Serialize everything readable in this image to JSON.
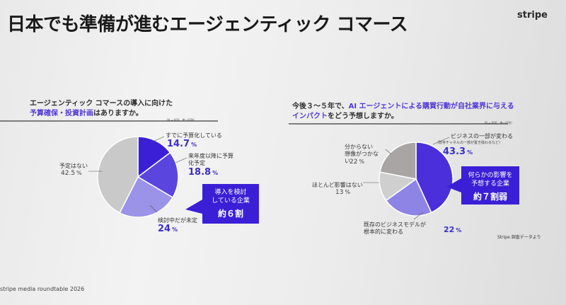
{
  "slide": {
    "title": "日本でも準備が進むエージェンティック コマース",
    "brand": "stripe",
    "footer": "stripe media roundtable 2026",
    "source": "Stripe 調査データより"
  },
  "left": {
    "question_line1": "エージェンティック コマースの導入に向けた",
    "question_line2_highlight": "予算確保・投資計画",
    "question_line2_rest": "はありますか。",
    "note": "（N = 600、単一回答）",
    "callout_line1": "導入を検討",
    "callout_line2": "している企業",
    "callout_line3": "約６割"
  },
  "right": {
    "question_line1": "今後３～５年で、",
    "question_line1_highlight": "AI エージェントによる購買行動が自社業界に与える",
    "question_line2_highlight": "インパクト",
    "question_line2_rest": "をどう予想しますか。",
    "note": "（N = 600、単一回答）",
    "callout_line1": "何らかの影響を",
    "callout_line2": "予想する企業",
    "callout_line3": "約７割弱"
  },
  "chart_data": [
    {
      "type": "pie",
      "title": "エージェンティック コマースの導入に向けた予算確保・投資計画はありますか。",
      "unit": "%",
      "slices": [
        {
          "label": "すでに予算化している",
          "value": 14.7,
          "color": "#3b1fd6"
        },
        {
          "label": "来年度以降に予算化予定",
          "value": 18.8,
          "color": "#5a45df"
        },
        {
          "label": "検討中だが未定",
          "value": 24.0,
          "color": "#9b93e8"
        },
        {
          "label": "予定はない",
          "value": 42.5,
          "color": "#c9c9c9"
        }
      ]
    },
    {
      "type": "pie",
      "title": "今後３～５年で、AI エージェントによる購買行動が自社業界に与えるインパクトをどう予想しますか。",
      "unit": "%",
      "slices": [
        {
          "label": "ビジネスの一部が変わる",
          "sublabel": "（既存チャネルの一部が置き換わるなど）",
          "value": 43.3,
          "color": "#4a2fdb"
        },
        {
          "label": "既存のビジネスモデルが根本的に変わる",
          "value": 22.0,
          "color": "#8e84e6"
        },
        {
          "label": "ほとんど影響はない",
          "value": 13.0,
          "color": "#cfcfcf"
        },
        {
          "label": "分からない 想像がつかない",
          "value": 22.0,
          "color": "#a9a5a5"
        }
      ]
    }
  ]
}
